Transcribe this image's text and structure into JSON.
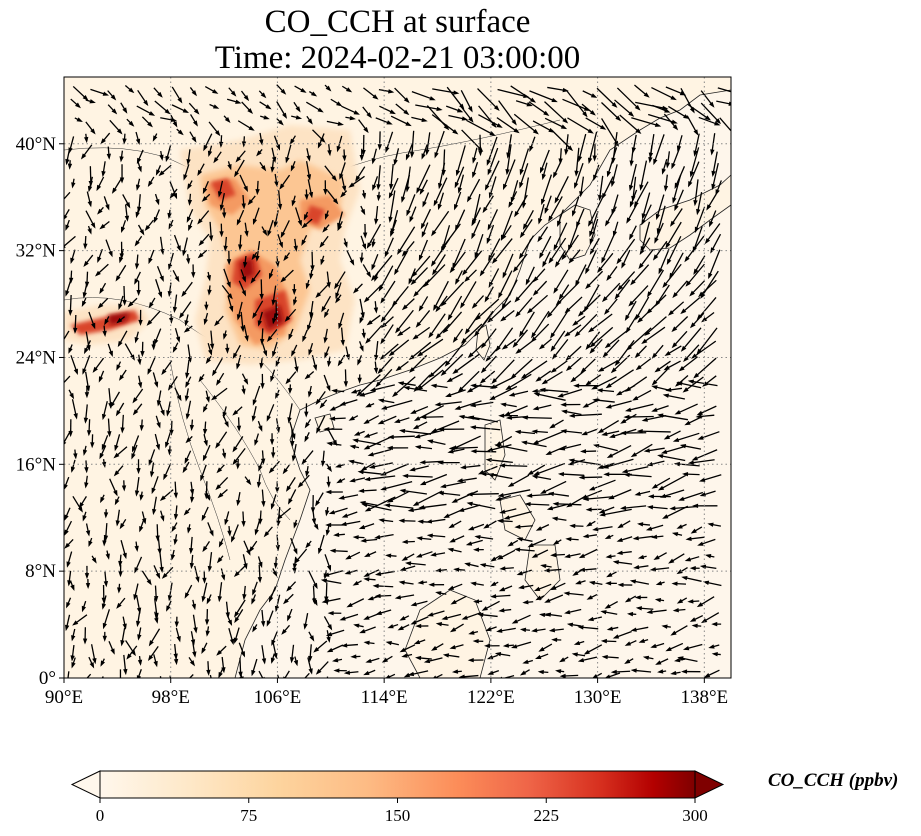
{
  "title": {
    "line1": "CO_CCH at surface",
    "line2": "Time: 2024-02-21 03:00:00"
  },
  "map": {
    "x_axis": {
      "tick_labels": [
        "90°E",
        "98°E",
        "106°E",
        "114°E",
        "122°E",
        "130°E",
        "138°E"
      ],
      "tick_values": [
        90,
        98,
        106,
        114,
        122,
        130,
        138
      ],
      "range": [
        90,
        140
      ]
    },
    "y_axis": {
      "tick_labels": [
        "0°",
        "8°N",
        "16°N",
        "24°N",
        "32°N",
        "40°N"
      ],
      "tick_values": [
        0,
        8,
        16,
        24,
        32,
        40
      ],
      "range": [
        0,
        45
      ]
    },
    "gridlines": "dotted",
    "ocean_color": "#fef6eb",
    "land_color": "#fff4e6",
    "plume_colors": [
      "#fde0c0",
      "#fcb882",
      "#f4864f",
      "#d9452a",
      "#a81010",
      "#6e0000"
    ]
  },
  "colorbar": {
    "label": "CO_CCH (ppbv)",
    "tick_labels": [
      "0",
      "75",
      "150",
      "225",
      "300"
    ],
    "range": [
      0,
      300
    ],
    "extend": "both",
    "colormap": "OrRd"
  }
}
